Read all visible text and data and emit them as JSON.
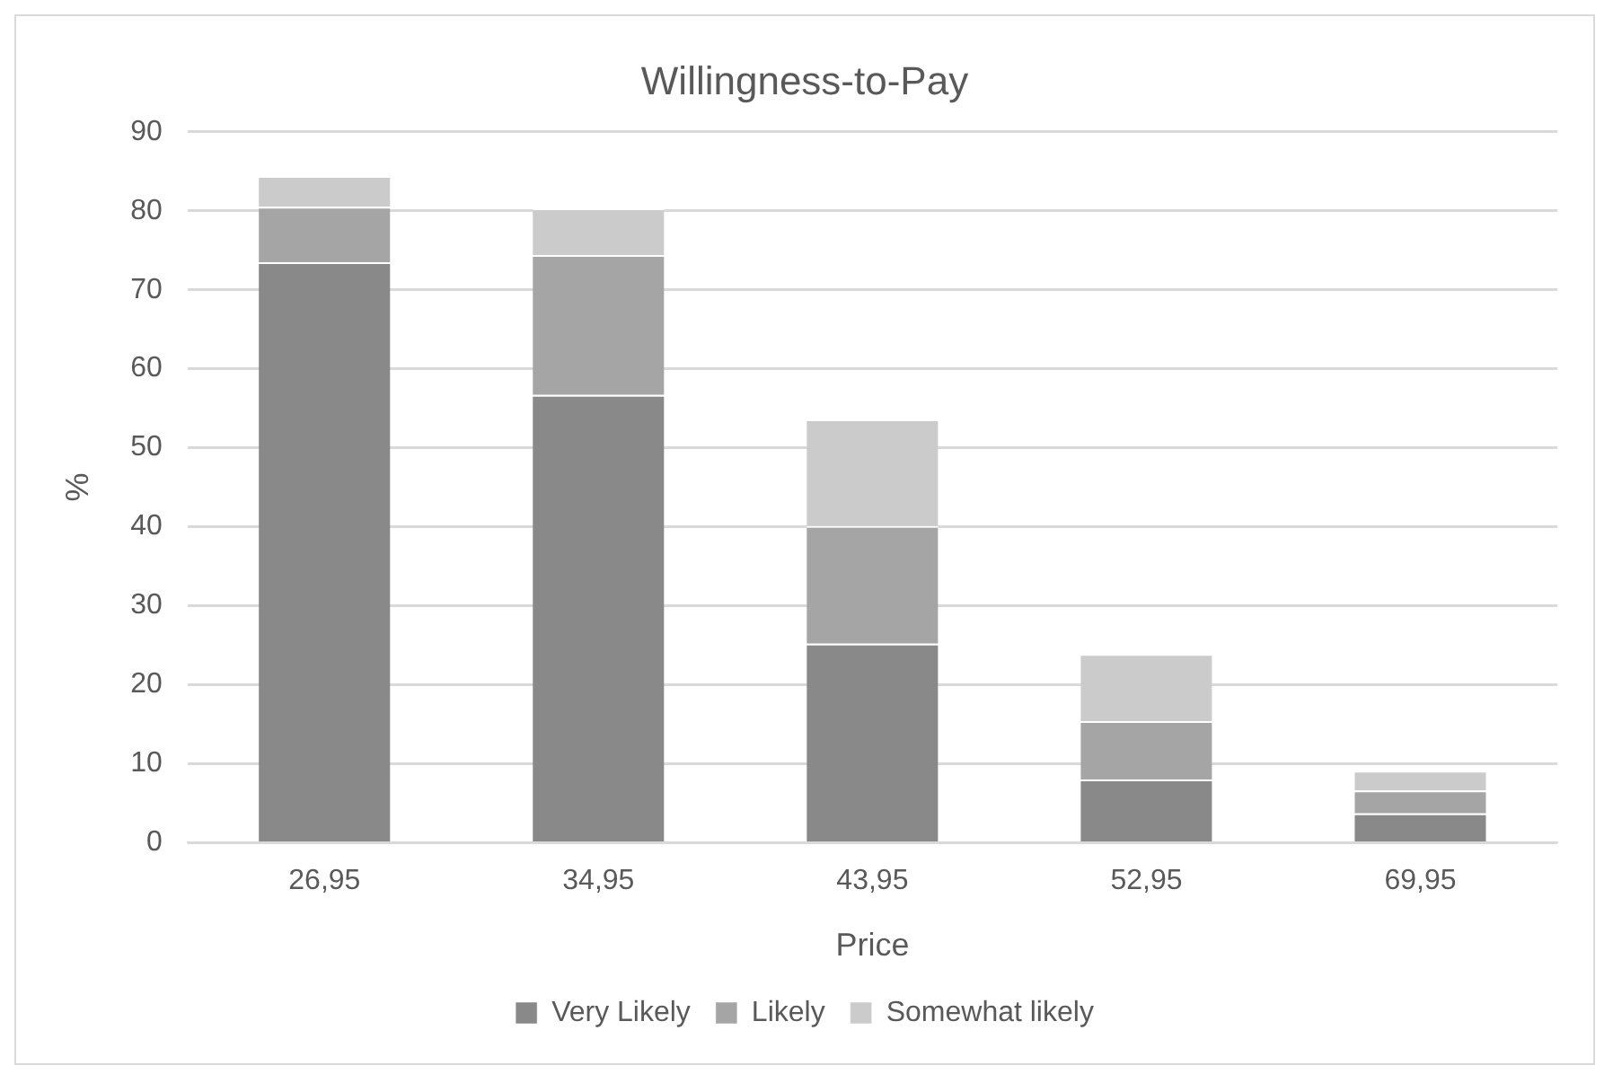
{
  "chart_data": {
    "type": "bar",
    "title": "Willingness-to-Pay",
    "xlabel": "Price",
    "ylabel": "%",
    "categories": [
      "26,95",
      "34,95",
      "43,95",
      "52,95",
      "69,95"
    ],
    "stacked": true,
    "series": [
      {
        "name": "Very Likely",
        "color": "#898989",
        "values": [
          73.5,
          56.7,
          25.2,
          8.0,
          3.7
        ]
      },
      {
        "name": "Likely",
        "color": "#a5a5a5",
        "values": [
          7.0,
          17.7,
          14.9,
          7.4,
          2.9
        ]
      },
      {
        "name": "Somewhat likely",
        "color": "#cbcbcb",
        "values": [
          3.9,
          5.9,
          13.5,
          8.5,
          2.5
        ]
      }
    ],
    "ylim": [
      0,
      90
    ],
    "yticks": [
      0,
      10,
      20,
      30,
      40,
      50,
      60,
      70,
      80,
      90
    ],
    "grid": "y",
    "legend": "bottom"
  }
}
